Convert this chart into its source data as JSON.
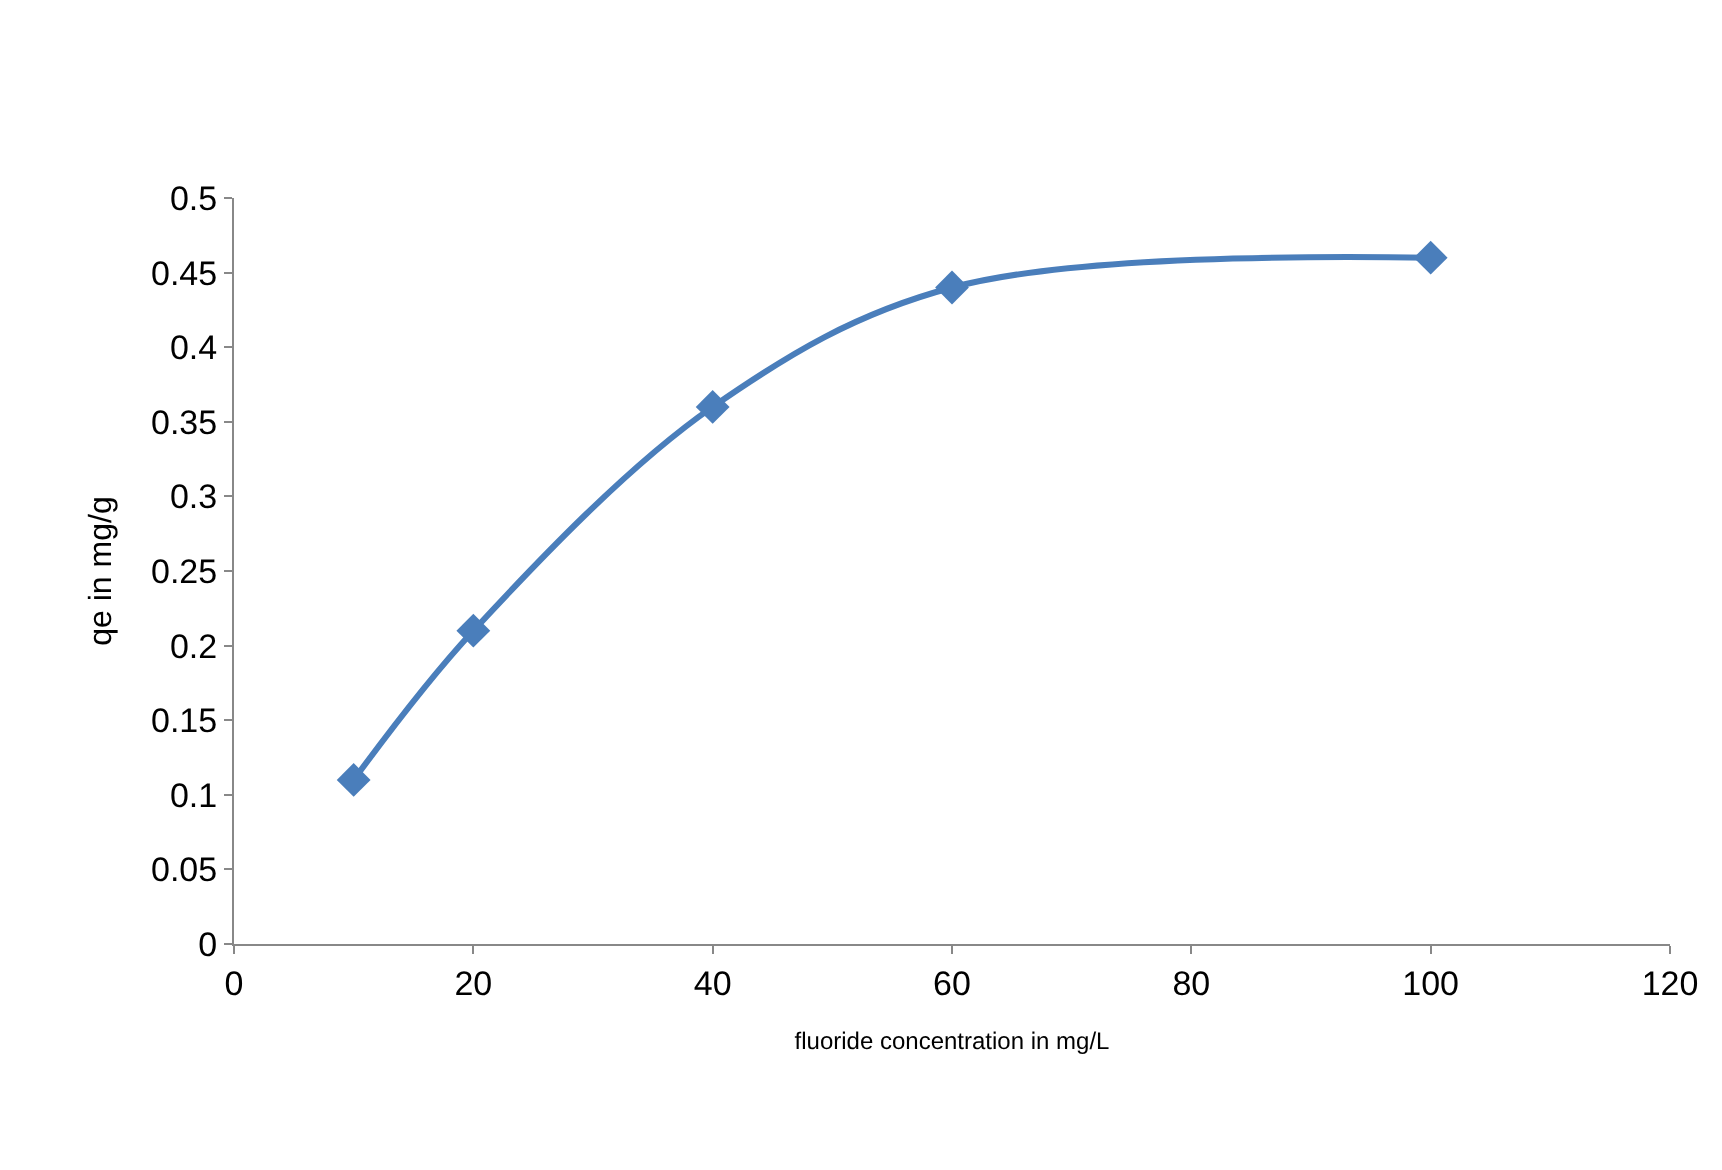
{
  "chart_data": {
    "type": "line",
    "xlabel": "fluoride concentration in mg/L",
    "ylabel": "qe in mg/g",
    "x": [
      10,
      20,
      40,
      60,
      100
    ],
    "series": [
      {
        "color": "#4a7ebb",
        "values": [
          0.11,
          0.21,
          0.36,
          0.44,
          0.46
        ]
      }
    ],
    "xlim": [
      0,
      120
    ],
    "xticks": [
      0,
      20,
      40,
      60,
      80,
      100,
      120
    ],
    "ylim": [
      0,
      0.5
    ],
    "yticks": [
      0,
      0.05,
      0.1,
      0.15,
      0.2,
      0.25,
      0.3,
      0.35,
      0.4,
      0.45,
      0.5
    ],
    "grid": false,
    "legend": false,
    "marker": "diamond",
    "line_style": "solid"
  }
}
